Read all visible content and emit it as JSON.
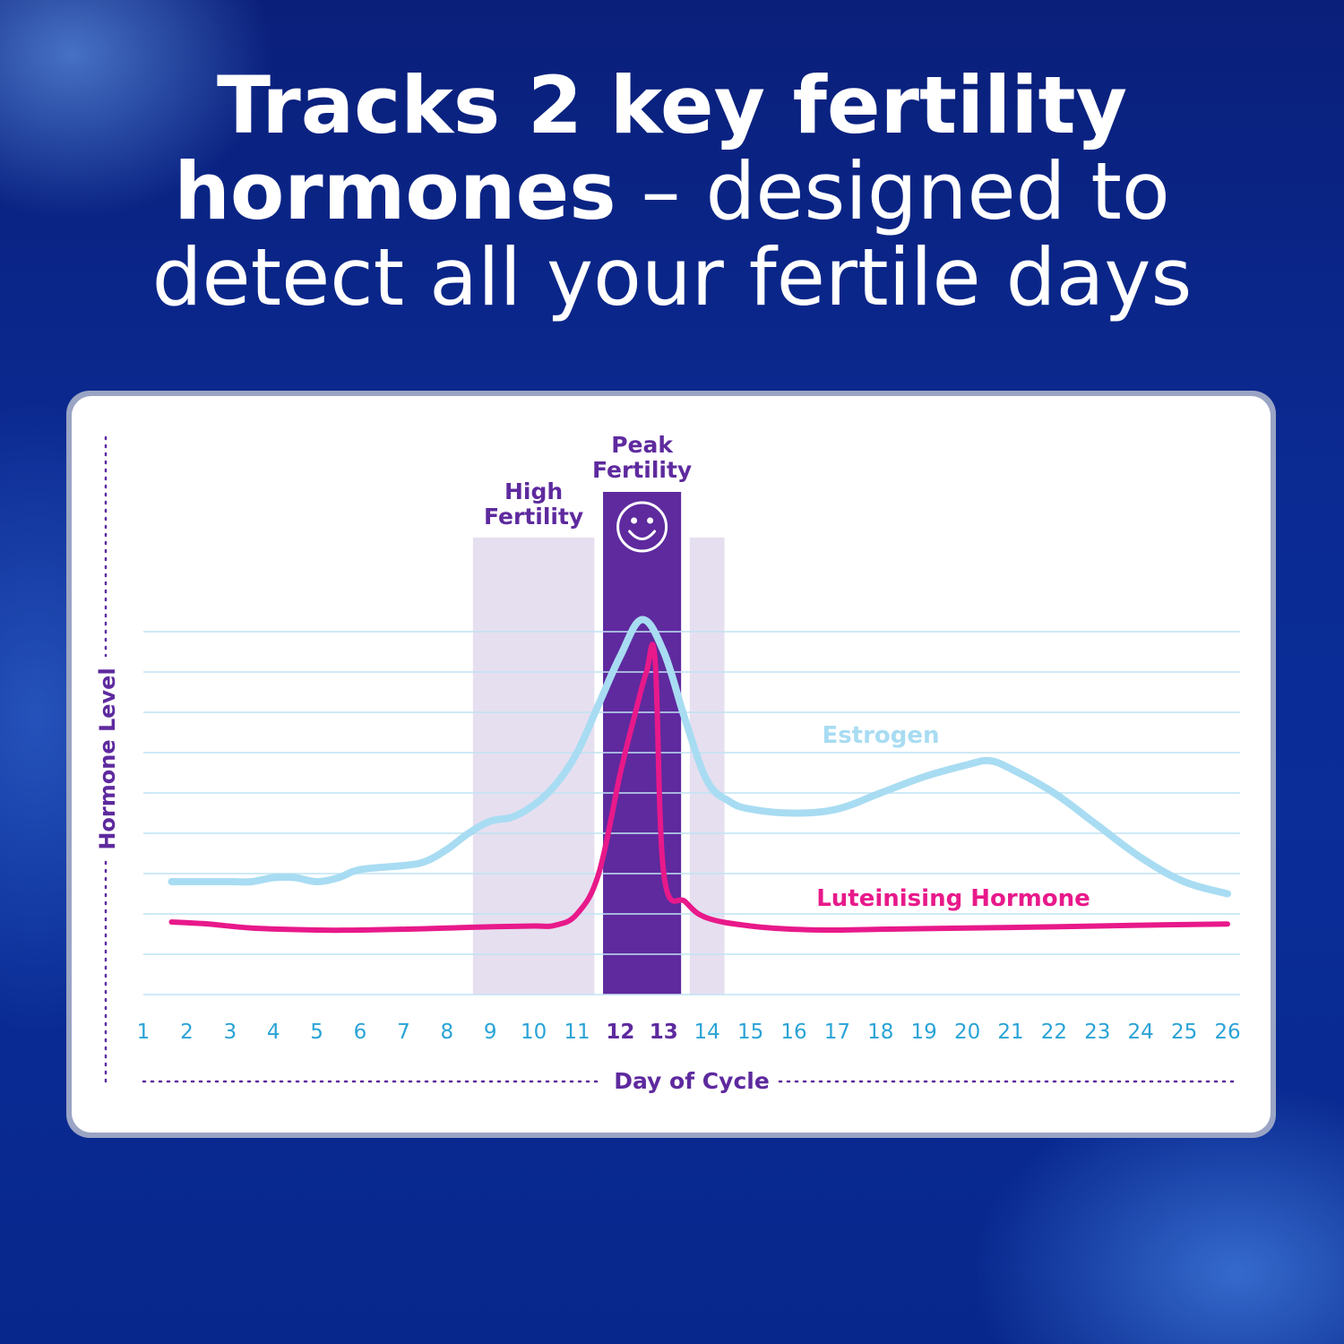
{
  "headline": {
    "line1_bold": "Tracks 2 key fertility",
    "line2_bold": "hormones",
    "line2_light": " – designed to",
    "line3_light": "detect all your fertile days"
  },
  "colors": {
    "background": "#0b2a92",
    "estrogen": "#a8dcf2",
    "lh": "#e8198a",
    "high_fertility_band": "#e6dff0",
    "peak_fertility_band": "#5e2a9e",
    "axis_label": "#5e2a9e",
    "tick_label": "#2aa3d6"
  },
  "chart_data": {
    "type": "line",
    "xlabel": "Day of Cycle",
    "ylabel": "Hormone Level",
    "x_ticks": [
      1,
      2,
      3,
      4,
      5,
      6,
      7,
      8,
      9,
      10,
      11,
      12,
      13,
      14,
      15,
      16,
      17,
      18,
      19,
      20,
      21,
      22,
      23,
      24,
      25,
      26
    ],
    "bold_ticks": [
      12,
      13
    ],
    "xlim": [
      1,
      26
    ],
    "ylim": [
      0,
      9
    ],
    "grid": true,
    "bands": [
      {
        "label": "High Fertility",
        "start": 8.6,
        "end": 11.4,
        "kind": "high"
      },
      {
        "label": "Peak Fertility",
        "start": 11.6,
        "end": 13.4,
        "kind": "peak",
        "icon": "smiley-icon"
      },
      {
        "label": "",
        "start": 13.6,
        "end": 14.4,
        "kind": "high"
      }
    ],
    "series": [
      {
        "name": "Estrogen",
        "color": "#a8dcf2",
        "x": [
          1.65,
          2,
          3,
          3.5,
          4,
          4.5,
          5,
          5.5,
          6,
          7,
          7.5,
          8,
          8.5,
          9,
          9.5,
          10,
          10.5,
          11,
          11.5,
          12,
          12.5,
          13,
          13.5,
          14,
          14.5,
          15,
          16,
          17,
          18,
          19,
          20,
          20.5,
          21,
          22,
          23,
          24,
          25,
          26
        ],
        "y": [
          2.8,
          2.8,
          2.8,
          2.8,
          2.9,
          2.9,
          2.8,
          2.9,
          3.1,
          3.2,
          3.3,
          3.6,
          4.0,
          4.3,
          4.4,
          4.7,
          5.2,
          6.0,
          7.2,
          8.4,
          9.3,
          8.5,
          6.8,
          5.3,
          4.8,
          4.6,
          4.5,
          4.6,
          5.0,
          5.4,
          5.7,
          5.8,
          5.6,
          5.0,
          4.2,
          3.4,
          2.8,
          2.5
        ]
      },
      {
        "name": "Luteinising Hormone",
        "color": "#e8198a",
        "x": [
          1.65,
          2.5,
          3.5,
          5,
          6,
          7,
          8,
          9,
          10,
          10.5,
          11,
          11.5,
          12,
          12.3,
          12.6,
          12.8,
          13,
          13.5,
          14,
          15,
          16,
          17,
          18,
          20,
          22,
          24,
          26
        ],
        "y": [
          1.8,
          1.75,
          1.65,
          1.6,
          1.6,
          1.62,
          1.65,
          1.68,
          1.7,
          1.72,
          2.0,
          3.0,
          5.5,
          6.8,
          8.0,
          8.3,
          3.0,
          2.3,
          1.9,
          1.7,
          1.62,
          1.6,
          1.62,
          1.65,
          1.68,
          1.72,
          1.75
        ]
      }
    ],
    "series_labels": [
      "Estrogen",
      "Luteinising Hormone"
    ]
  }
}
